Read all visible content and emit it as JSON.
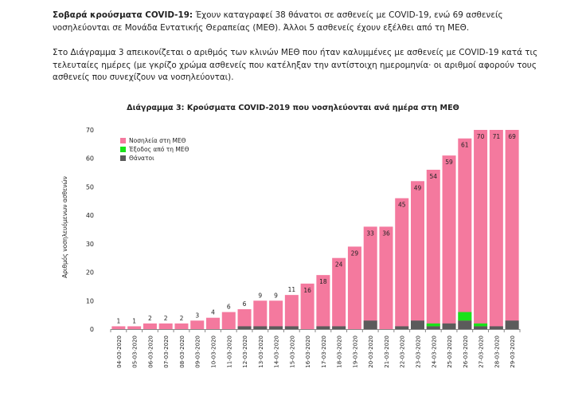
{
  "text": {
    "p1_bold": "Σοβαρά κρούσματα COVID-19:",
    "p1_rest": " Έχουν καταγραφεί 38 θάνατοι σε ασθενείς με COVID-19, ενώ 69 ασθενείς νοσηλεύονται σε Μονάδα Εντατικής Θεραπείας (ΜΕΘ). Άλλοι 5 ασθενείς έχουν εξέλθει από τη ΜΕΘ.",
    "p2": "Στο Διάγραμμα 3 απεικονίζεται ο αριθμός των κλινών ΜΕΘ που ήταν καλυμμένες με ασθενείς με COVID-19 κατά τις τελευταίες ημέρες (με γκρίζο χρώμα ασθενείς που κατέληξαν την αντίστοιχη ημερομηνία· οι αριθμοί αφορούν τους ασθενείς που συνεχίζουν να νοσηλεύονται)."
  },
  "chart_data": {
    "type": "bar",
    "title": "Διάγραμμα 3: Κρούσματα COVID-2019 που νοσηλεύονται ανά ημέρα στη ΜΕΘ",
    "ylabel": "Αριθμός νοσηλευόμενων ασθενών",
    "xlabel": "",
    "ylim": [
      0,
      70
    ],
    "yticks": [
      0,
      10,
      20,
      30,
      40,
      50,
      60,
      70
    ],
    "grid": false,
    "legend_position": "top-left",
    "categories": [
      "04-03-2020",
      "05-03-2020",
      "06-03-2020",
      "07-03-2020",
      "08-03-2020",
      "09-03-2020",
      "10-03-2020",
      "11-03-2020",
      "12-03-2020",
      "13-03-2020",
      "14-03-2020",
      "15-03-2020",
      "16-03-2020",
      "17-03-2020",
      "18-03-2020",
      "19-03-2020",
      "20-03-2020",
      "21-03-2020",
      "22-03-2020",
      "23-03-2020",
      "24-03-2020",
      "25-03-2020",
      "26-03-2020",
      "27-03-2020",
      "28-03-2020",
      "29-03-2020"
    ],
    "series": [
      {
        "name": "Νοσηλεία στη ΜΕΘ",
        "color": "#f4799e",
        "values": [
          1,
          1,
          2,
          2,
          2,
          3,
          4,
          6,
          6,
          9,
          9,
          11,
          16,
          18,
          24,
          29,
          33,
          36,
          45,
          49,
          54,
          59,
          61,
          70,
          71,
          69
        ]
      },
      {
        "name": "Έξοδος από τη ΜΕΘ",
        "color": "#19e319",
        "values": [
          0,
          0,
          0,
          0,
          0,
          0,
          0,
          0,
          0,
          0,
          0,
          0,
          0,
          0,
          0,
          0,
          0,
          0,
          0,
          0,
          1,
          0,
          3,
          1,
          0,
          0
        ]
      },
      {
        "name": "Θάνατοι",
        "color": "#5b5b5b",
        "values": [
          0,
          0,
          0,
          0,
          0,
          0,
          0,
          0,
          1,
          1,
          1,
          1,
          0,
          1,
          1,
          0,
          3,
          0,
          1,
          3,
          1,
          2,
          3,
          1,
          1,
          3
        ]
      }
    ],
    "data_labels": [
      1,
      1,
      2,
      2,
      2,
      3,
      4,
      6,
      6,
      9,
      9,
      11,
      16,
      18,
      24,
      29,
      33,
      36,
      45,
      49,
      54,
      59,
      61,
      70,
      71,
      69
    ]
  }
}
